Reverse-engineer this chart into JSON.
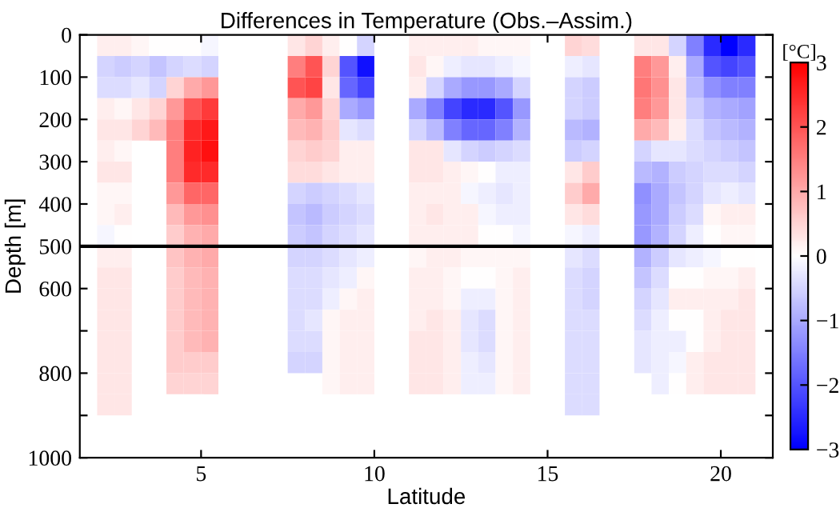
{
  "chart_data": {
    "type": "heatmap",
    "title": "Differences in Temperature (Obs.–Assim.)",
    "xlabel": "Latitude",
    "ylabel": "Depth [m]",
    "clabel": "[°C]",
    "x": [
      2.25,
      2.75,
      3.25,
      3.75,
      4.25,
      4.75,
      5.25,
      5.75,
      6.25,
      6.75,
      7.25,
      7.75,
      8.25,
      8.75,
      9.25,
      9.75,
      10.25,
      10.75,
      11.25,
      11.75,
      12.25,
      12.75,
      13.25,
      13.75,
      14.25,
      14.75,
      15.25,
      15.75,
      16.25,
      16.75,
      17.25,
      17.75,
      18.25,
      18.75,
      19.25,
      19.75,
      20.25,
      20.75
    ],
    "y": [
      25,
      75,
      125,
      175,
      225,
      275,
      325,
      375,
      425,
      475,
      525,
      575,
      625,
      675,
      725,
      775,
      825,
      875
    ],
    "cells": [
      [
        0.2,
        0.2,
        0.1,
        0.0,
        0.0,
        0.0,
        -0.1,
        null,
        null,
        null,
        null,
        0.3,
        0.5,
        0.2,
        0.0,
        -0.5,
        null,
        null,
        0.2,
        0.2,
        0.2,
        0.2,
        0.1,
        0.1,
        0.1,
        null,
        null,
        0.5,
        0.4,
        null,
        null,
        0.3,
        0.3,
        -0.5,
        -1.5,
        -2.5,
        -3.0,
        -2.5
      ],
      [
        -0.5,
        -0.6,
        -0.5,
        -0.7,
        -0.5,
        -0.4,
        -0.5,
        null,
        null,
        null,
        null,
        1.5,
        2.0,
        0.5,
        -2.0,
        -2.8,
        null,
        null,
        0.3,
        0.1,
        -0.2,
        -0.3,
        -0.3,
        -0.2,
        -0.1,
        null,
        null,
        -0.2,
        -0.3,
        null,
        null,
        1.5,
        1.2,
        0.2,
        -1.0,
        -2.0,
        -2.2,
        -2.0
      ],
      [
        -0.4,
        -0.4,
        -0.3,
        -0.5,
        0.5,
        1.0,
        1.2,
        null,
        null,
        null,
        null,
        2.0,
        2.2,
        0.3,
        -1.8,
        -2.2,
        null,
        null,
        0.2,
        -0.5,
        -1.0,
        -1.2,
        -1.2,
        -1.0,
        -0.5,
        null,
        null,
        -0.5,
        -0.6,
        null,
        null,
        1.6,
        1.3,
        0.3,
        -0.8,
        -1.3,
        -1.5,
        -1.5
      ],
      [
        0.2,
        0.1,
        0.3,
        0.5,
        1.2,
        2.0,
        2.3,
        null,
        null,
        null,
        null,
        1.0,
        1.2,
        0.5,
        -1.0,
        -1.2,
        null,
        null,
        -1.0,
        -1.5,
        -2.2,
        -2.5,
        -2.5,
        -2.0,
        -1.2,
        null,
        null,
        -0.5,
        -0.6,
        null,
        null,
        1.5,
        1.2,
        0.3,
        -0.6,
        -0.9,
        -1.0,
        -1.1
      ],
      [
        0.3,
        0.3,
        0.5,
        0.8,
        1.5,
        2.5,
        2.7,
        null,
        null,
        null,
        null,
        0.8,
        0.9,
        0.6,
        -0.3,
        -0.4,
        null,
        null,
        -0.5,
        -0.8,
        -1.5,
        -1.8,
        -1.8,
        -1.5,
        -0.9,
        null,
        null,
        -0.8,
        -0.9,
        null,
        null,
        1.0,
        0.8,
        0.2,
        -0.4,
        -0.7,
        -0.8,
        -0.9
      ],
      [
        0.2,
        0.1,
        null,
        null,
        1.5,
        2.6,
        2.8,
        null,
        null,
        null,
        null,
        0.5,
        0.6,
        0.5,
        0.2,
        0.2,
        null,
        null,
        0.3,
        0.3,
        -0.3,
        -0.5,
        -0.6,
        -0.5,
        -0.4,
        null,
        null,
        -0.6,
        -0.5,
        null,
        null,
        -0.5,
        -0.3,
        -0.3,
        -0.4,
        -0.5,
        -0.6,
        -0.7
      ],
      [
        0.3,
        0.3,
        null,
        null,
        1.5,
        2.5,
        2.5,
        null,
        null,
        null,
        null,
        0.4,
        0.4,
        0.3,
        0.2,
        0.2,
        null,
        null,
        0.3,
        0.3,
        0.2,
        0.1,
        0.0,
        -0.2,
        -0.2,
        null,
        null,
        0.3,
        0.6,
        null,
        null,
        -0.8,
        -0.9,
        -0.6,
        -0.5,
        -0.4,
        -0.4,
        -0.5
      ],
      [
        0.1,
        0.1,
        null,
        null,
        1.2,
        1.8,
        1.8,
        null,
        null,
        null,
        null,
        -0.5,
        -0.6,
        -0.5,
        -0.4,
        -0.3,
        null,
        null,
        0.2,
        0.2,
        0.2,
        -0.1,
        -0.2,
        -0.3,
        -0.2,
        null,
        null,
        0.6,
        1.0,
        null,
        null,
        -1.3,
        -1.0,
        -0.7,
        -0.5,
        -0.3,
        -0.2,
        -0.3
      ],
      [
        0.1,
        0.2,
        null,
        null,
        0.8,
        1.2,
        1.3,
        null,
        null,
        null,
        null,
        -0.7,
        -0.8,
        -0.6,
        -0.5,
        -0.4,
        null,
        null,
        0.2,
        0.3,
        0.2,
        0.2,
        -0.1,
        -0.2,
        -0.2,
        null,
        null,
        0.3,
        0.4,
        null,
        null,
        -1.2,
        -1.0,
        -0.6,
        -0.4,
        0.1,
        0.2,
        0.2
      ],
      [
        -0.1,
        0.0,
        null,
        null,
        0.6,
        0.9,
        1.0,
        null,
        null,
        null,
        null,
        -0.6,
        -0.7,
        -0.5,
        -0.4,
        -0.3,
        null,
        null,
        0.2,
        0.2,
        0.2,
        0.2,
        0.0,
        0.0,
        -0.1,
        null,
        null,
        -0.1,
        -0.2,
        null,
        null,
        -1.2,
        -0.9,
        -0.5,
        -0.2,
        0.0,
        0.1,
        0.1
      ],
      [
        0.2,
        0.2,
        null,
        null,
        0.7,
        0.9,
        1.0,
        null,
        null,
        null,
        null,
        -0.5,
        -0.5,
        -0.4,
        -0.3,
        -0.2,
        null,
        null,
        0.1,
        0.2,
        0.2,
        0.1,
        0.1,
        0.1,
        0.1,
        null,
        null,
        -0.3,
        -0.4,
        null,
        null,
        -0.9,
        -0.6,
        -0.3,
        -0.2,
        -0.1,
        0.0,
        0.0
      ],
      [
        0.3,
        0.3,
        null,
        null,
        0.6,
        0.8,
        0.9,
        null,
        null,
        null,
        null,
        -0.4,
        -0.4,
        -0.3,
        -0.2,
        0.1,
        null,
        null,
        0.2,
        0.2,
        0.1,
        0.0,
        0.0,
        0.1,
        0.2,
        null,
        null,
        -0.4,
        -0.5,
        null,
        null,
        -0.7,
        -0.4,
        0.0,
        0.0,
        0.1,
        0.1,
        0.2
      ],
      [
        0.3,
        0.3,
        null,
        null,
        0.6,
        0.8,
        0.9,
        null,
        null,
        null,
        null,
        -0.4,
        -0.4,
        -0.2,
        0.1,
        0.2,
        null,
        null,
        0.2,
        0.2,
        0.1,
        -0.2,
        -0.2,
        0.1,
        0.2,
        null,
        null,
        -0.4,
        -0.5,
        null,
        null,
        -0.5,
        -0.3,
        0.2,
        0.2,
        0.2,
        0.2,
        0.3
      ],
      [
        0.3,
        0.3,
        null,
        null,
        0.6,
        0.8,
        0.9,
        null,
        null,
        null,
        null,
        -0.4,
        -0.3,
        0.1,
        0.2,
        0.2,
        null,
        null,
        0.2,
        0.3,
        0.2,
        -0.3,
        -0.4,
        0.1,
        0.2,
        null,
        null,
        -0.4,
        -0.4,
        null,
        null,
        -0.4,
        -0.2,
        0.0,
        0.0,
        0.2,
        0.3,
        0.3
      ],
      [
        0.3,
        0.3,
        null,
        null,
        0.6,
        0.8,
        0.9,
        null,
        null,
        null,
        null,
        -0.4,
        -0.4,
        0.1,
        0.2,
        0.2,
        null,
        null,
        0.3,
        0.3,
        0.2,
        -0.3,
        -0.4,
        0.1,
        0.2,
        null,
        null,
        -0.4,
        -0.4,
        null,
        null,
        -0.3,
        -0.2,
        -0.2,
        0.0,
        0.2,
        0.3,
        0.3
      ],
      [
        0.3,
        0.3,
        null,
        null,
        0.6,
        0.6,
        0.6,
        null,
        null,
        null,
        null,
        -0.5,
        -0.5,
        0.1,
        0.2,
        0.2,
        null,
        null,
        0.3,
        0.3,
        0.2,
        -0.2,
        -0.3,
        0.1,
        0.2,
        null,
        null,
        -0.4,
        -0.4,
        null,
        null,
        -0.3,
        -0.2,
        -0.1,
        0.2,
        0.3,
        0.3,
        0.3
      ],
      [
        0.3,
        0.3,
        null,
        null,
        0.5,
        0.5,
        0.5,
        null,
        null,
        null,
        null,
        null,
        null,
        0.1,
        0.2,
        0.2,
        null,
        null,
        0.3,
        0.3,
        0.2,
        -0.2,
        -0.2,
        0.1,
        0.2,
        null,
        null,
        -0.4,
        -0.4,
        null,
        null,
        null,
        -0.2,
        0.0,
        0.2,
        0.3,
        0.3,
        0.3
      ],
      [
        0.3,
        0.3,
        null,
        null,
        null,
        null,
        null,
        null,
        null,
        null,
        null,
        null,
        null,
        null,
        null,
        null,
        null,
        null,
        null,
        null,
        null,
        null,
        null,
        null,
        null,
        null,
        null,
        -0.4,
        -0.4,
        null,
        null,
        null,
        null,
        null,
        null,
        null,
        null,
        null
      ]
    ],
    "xlim": [
      1.5,
      21.5
    ],
    "xticks": [
      5,
      10,
      15,
      20
    ],
    "ylim": [
      1000,
      0
    ],
    "yticks": [
      0,
      100,
      200,
      300,
      400,
      500,
      600,
      {
        "value": 700,
        "label": null
      },
      800,
      {
        "value": 900,
        "label": null
      },
      1000
    ],
    "clim": [
      -3,
      3
    ],
    "cticks": [
      {
        "value": -3,
        "label": "−3"
      },
      {
        "value": -2,
        "label": "−2"
      },
      {
        "value": -1,
        "label": "−1"
      },
      0,
      1,
      2,
      3
    ],
    "ref_lines": [
      {
        "axis": "y",
        "value": 500,
        "color": "#000000",
        "line_style": "solid"
      }
    ]
  }
}
